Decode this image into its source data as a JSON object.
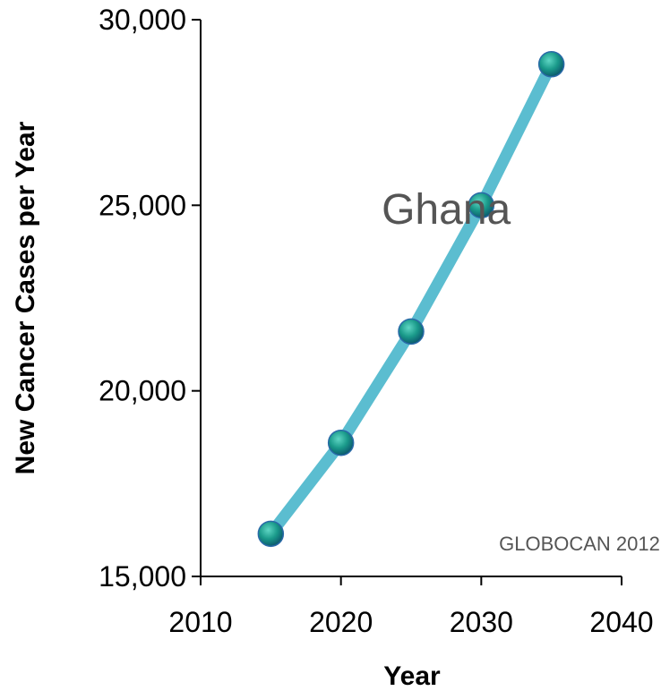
{
  "chart_data": {
    "type": "line",
    "x": [
      2015,
      2020,
      2025,
      2030,
      2035
    ],
    "series": [
      {
        "values": [
          16150,
          18600,
          21600,
          25000,
          28800
        ],
        "color": "#5bbdd0"
      }
    ],
    "marker_color": "#1a9a8a",
    "xlabel": "Year",
    "ylabel": "New Cancer Cases per Year",
    "xlim": [
      2010,
      2040
    ],
    "ylim": [
      15000,
      30000
    ],
    "x_ticks": [
      2010,
      2020,
      2030,
      2040
    ],
    "x_tick_labels": [
      "2010",
      "2020",
      "2030",
      "2040"
    ],
    "y_ticks": [
      15000,
      20000,
      25000,
      30000
    ],
    "y_tick_labels": [
      "15,000",
      "20,000",
      "25,000",
      "30,000"
    ],
    "grid": false,
    "annotations": [
      {
        "text": "Ghana",
        "x": 2027.5,
        "y": 24500,
        "style": "big"
      },
      {
        "text": "GLOBOCAN 2012",
        "x": 2037,
        "y": 15700,
        "style": "small"
      }
    ]
  }
}
